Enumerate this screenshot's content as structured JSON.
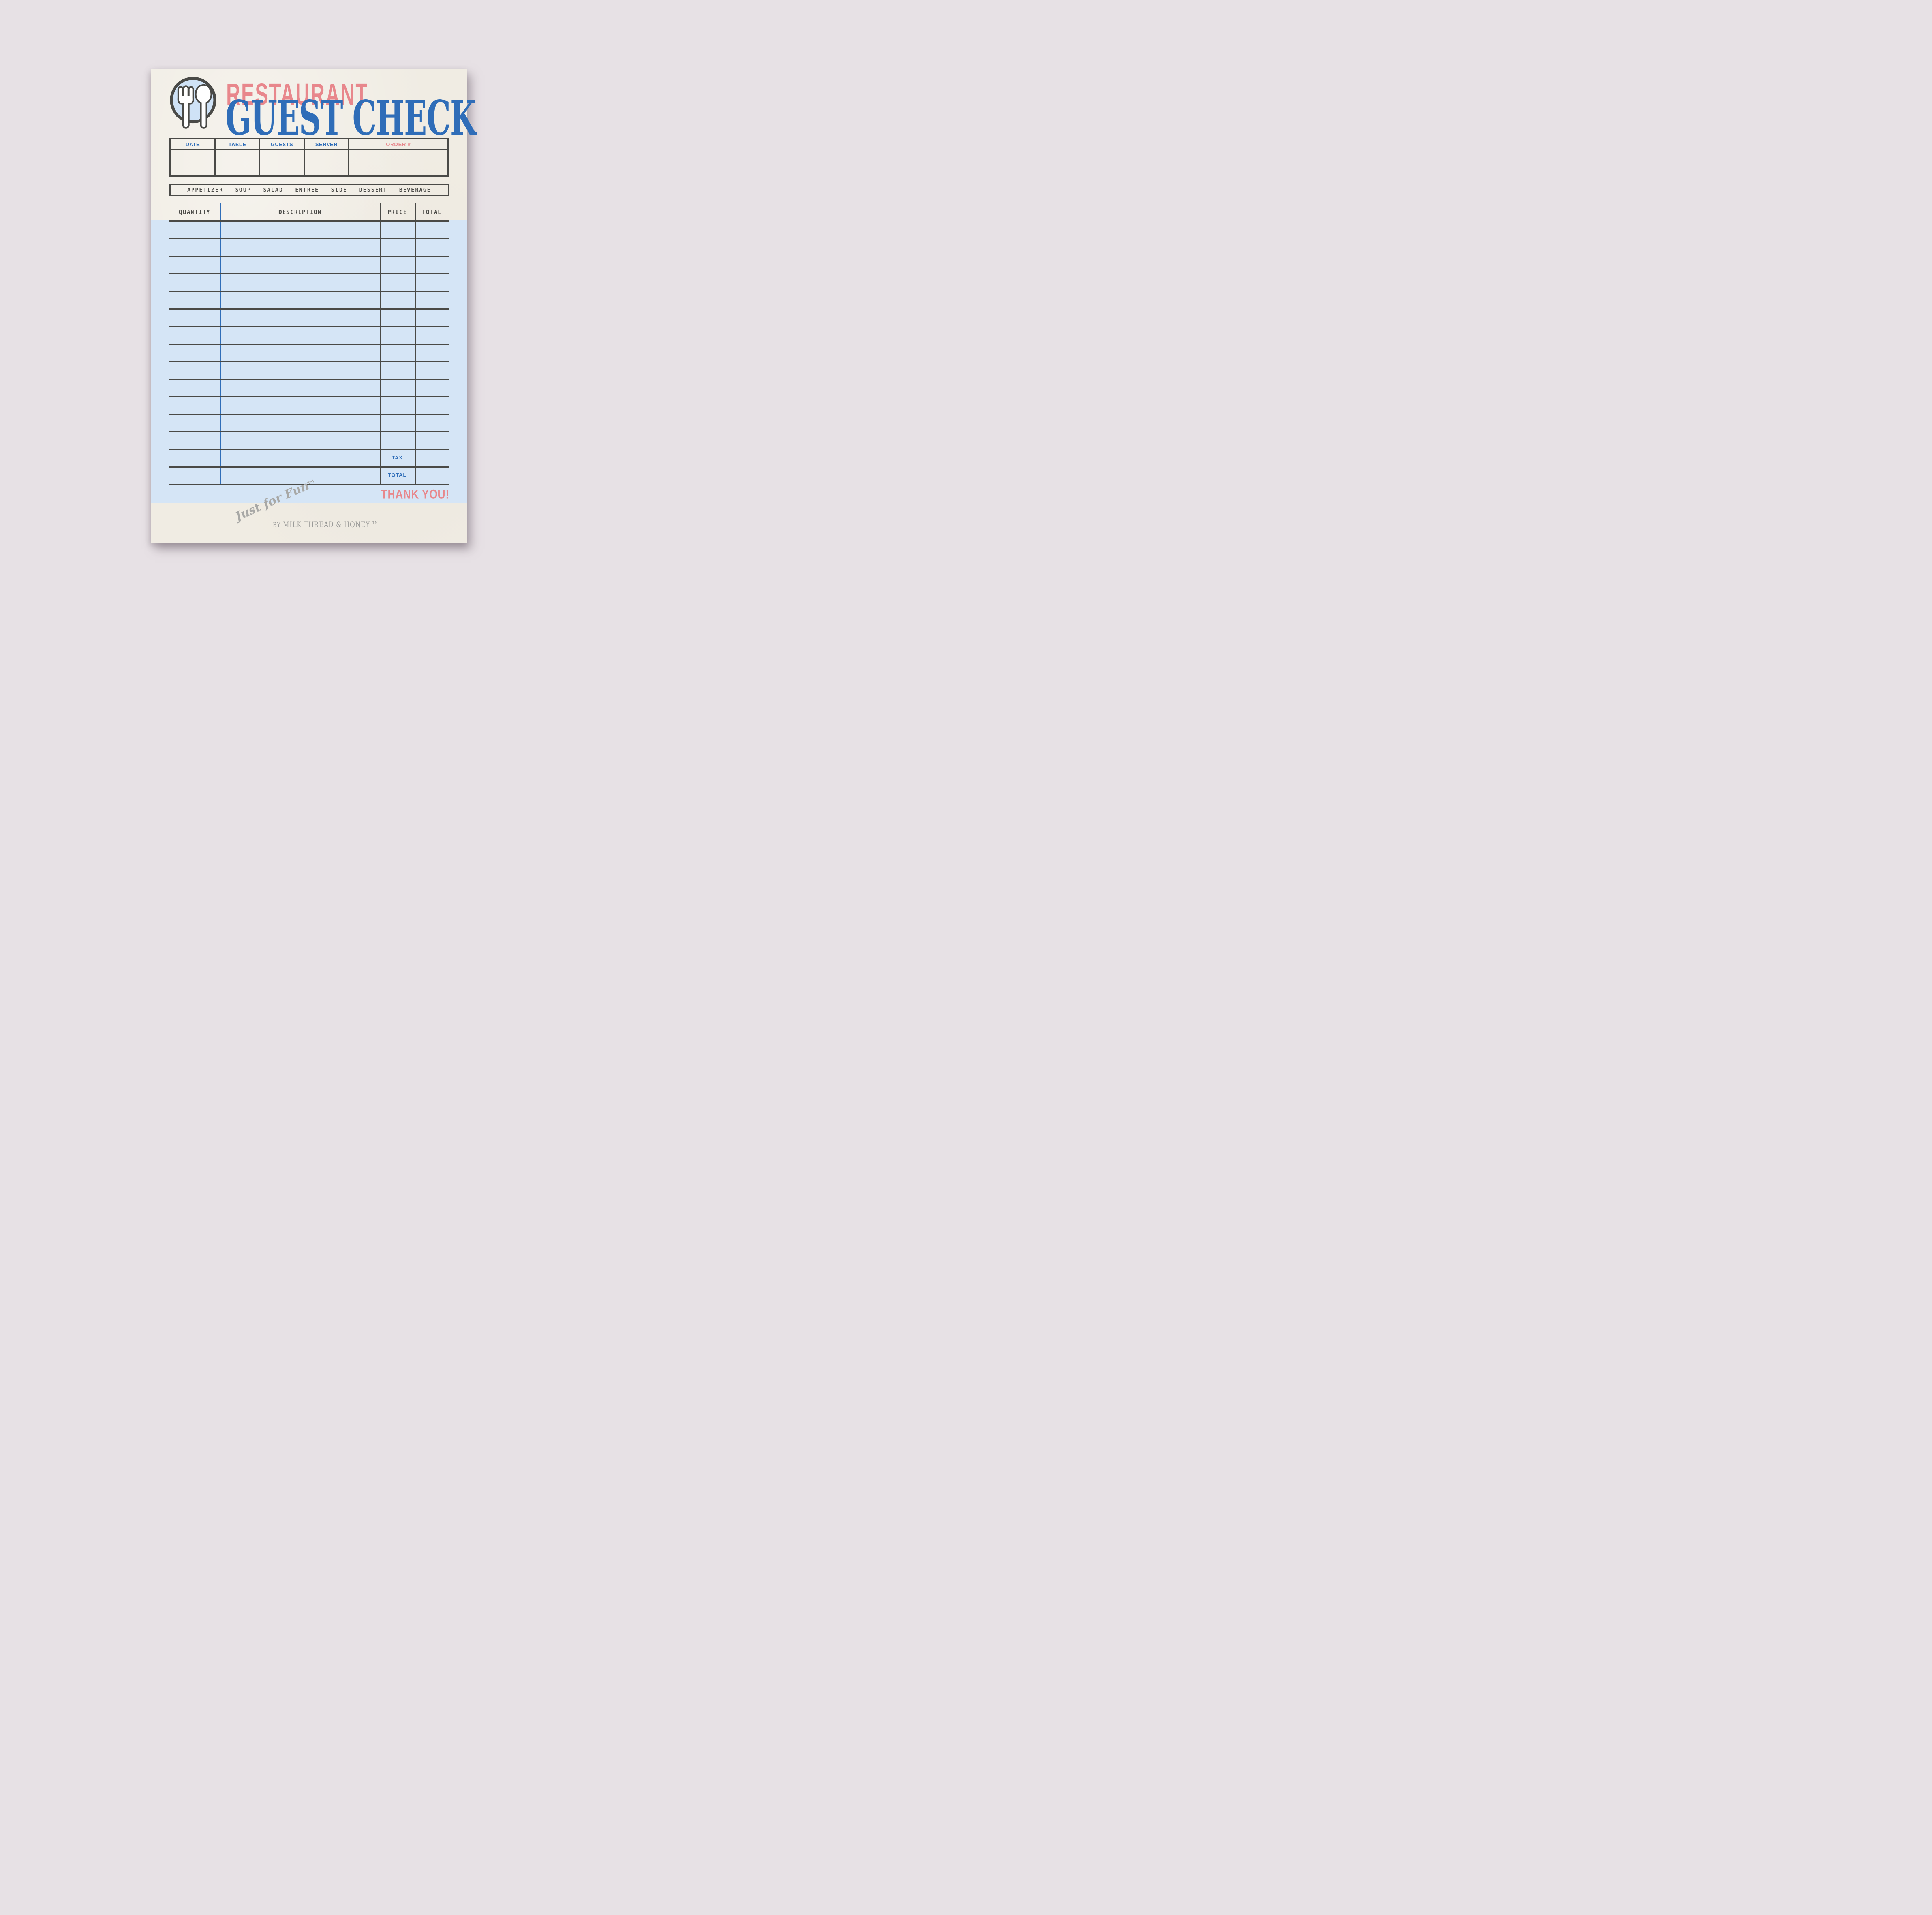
{
  "header": {
    "brand_word": "RESTAURANT",
    "title": "GUEST CHECK",
    "icon": "plate-fork-spoon-icon"
  },
  "info_table": {
    "columns": [
      "DATE",
      "TABLE",
      "GUESTS",
      "SERVER",
      "ORDER #"
    ]
  },
  "category_bar": "APPETIZER - SOUP - SALAD - ENTREE - SIDE - DESSERT - BEVERAGE",
  "order_table": {
    "columns": [
      "QUANTITY",
      "DESCRIPTION",
      "PRICE",
      "TOTAL"
    ],
    "row_count": 15,
    "tax_label": "TAX",
    "total_label": "TOTAL"
  },
  "thank_you": "THANK YOU!",
  "footer": {
    "script": "Just for Fun",
    "script_tm": "TM",
    "byline_prefix": "BY",
    "byline": "MILK THREAD & HONEY",
    "byline_tm": "TM"
  },
  "colors": {
    "bg": "#e7e1e5",
    "paper": "#f0ece3",
    "dark": "#4a4a47",
    "blue": "#2f6db8",
    "coral": "#e8878c",
    "panel": "#d5e5f6",
    "plate": "#cfe2f6",
    "gray": "#9b9b99",
    "grayl": "#a8a8a6"
  }
}
